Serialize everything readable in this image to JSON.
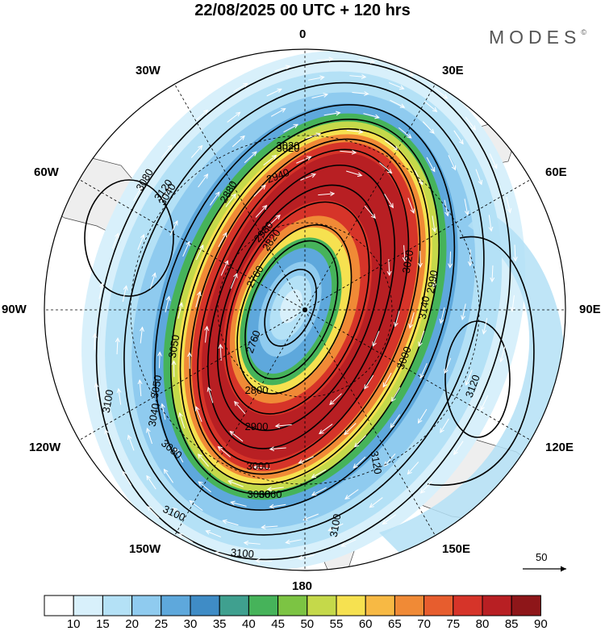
{
  "title": "22/08/2025  00 UTC  + 120 hrs",
  "brand": "MODES",
  "brand_mark": "©",
  "longitude_labels": {
    "n": "0",
    "e30": "30E",
    "e60": "60E",
    "e90": "90E",
    "e120": "120E",
    "e150": "150E",
    "s": "180",
    "w150": "150W",
    "w120": "120W",
    "w90": "90W",
    "w60": "60W",
    "w30": "30W"
  },
  "reference_vector": {
    "label": "50"
  },
  "colorbar": {
    "labels": [
      "10",
      "15",
      "20",
      "25",
      "30",
      "35",
      "40",
      "45",
      "50",
      "55",
      "60",
      "65",
      "70",
      "75",
      "80",
      "85",
      "90"
    ],
    "colors": [
      "#ffffff",
      "#d8f0fb",
      "#b4e1f6",
      "#8fcbef",
      "#5ea8dc",
      "#3f8cc6",
      "#3fa08f",
      "#46b35a",
      "#7cc443",
      "#c5d94a",
      "#f6e150",
      "#f7b944",
      "#f08a36",
      "#e75d2e",
      "#d63429",
      "#b81f23",
      "#8e1619"
    ]
  },
  "contour_labels": [
    "2760",
    "2760",
    "2820",
    "2880",
    "2940",
    "2980",
    "3000",
    "3020",
    "3040",
    "3050",
    "3060",
    "3080",
    "3080",
    "3100",
    "3100",
    "3100",
    "3100",
    "3120",
    "3120",
    "3120",
    "3140",
    "2800",
    "2900",
    "3000",
    "2990",
    "3040",
    "3050",
    "3060",
    "3020",
    "3020"
  ],
  "chart_data": {
    "type": "map",
    "projection": "south polar stereographic",
    "field_shaded": "wind speed",
    "field_contoured": "geopotential height",
    "contour_levels": [
      2760,
      2800,
      2820,
      2880,
      2900,
      2940,
      2980,
      3000,
      3020,
      3040,
      3060,
      3080,
      3100,
      3120,
      3140
    ],
    "shading_levels": [
      10,
      15,
      20,
      25,
      30,
      35,
      40,
      45,
      50,
      55,
      60,
      65,
      70,
      75,
      80,
      85,
      90
    ],
    "valid": "22/08/2025 00 UTC + 120 hrs"
  }
}
